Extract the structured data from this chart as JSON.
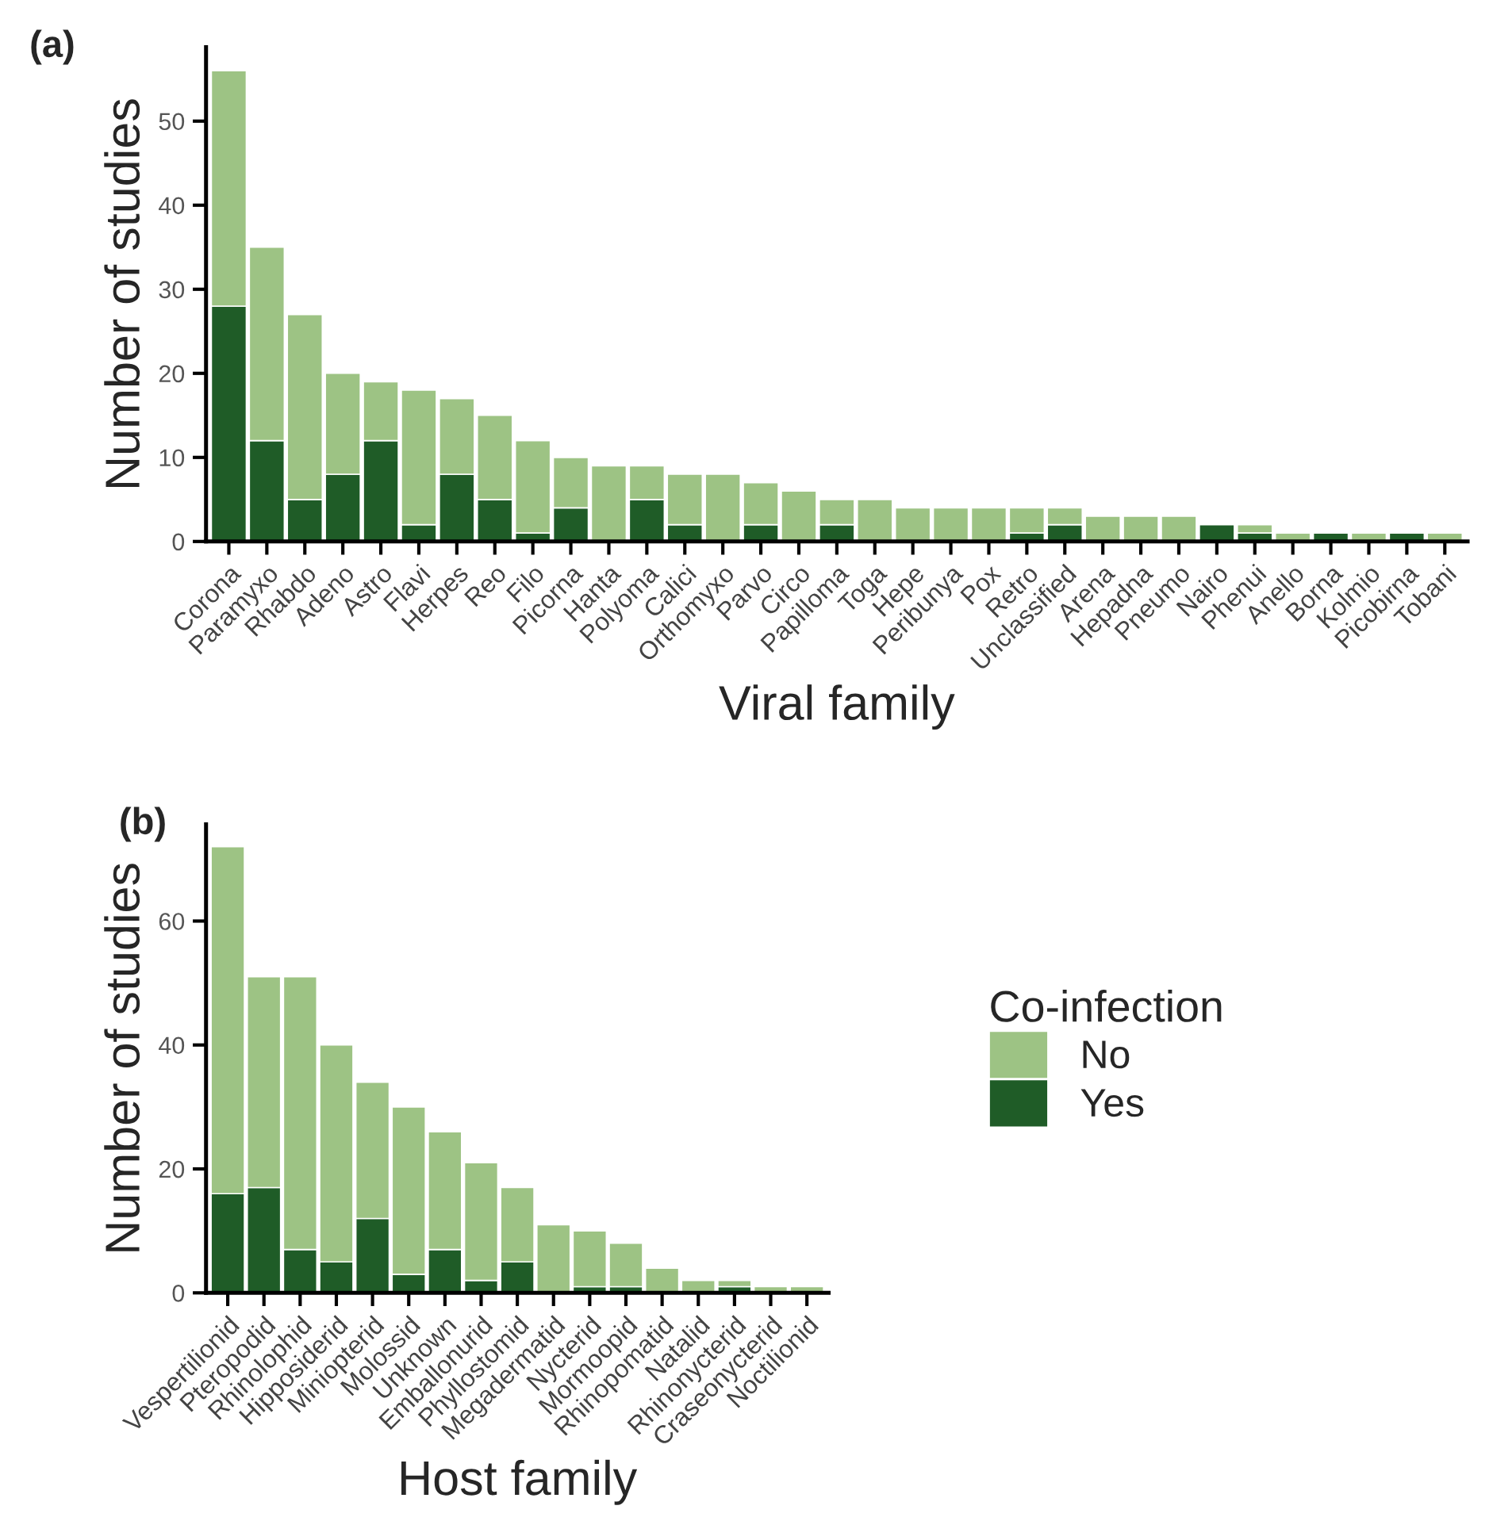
{
  "chart_data": [
    {
      "type": "bar",
      "title": "(a)",
      "xlabel": "Viral family",
      "ylabel": "Number of studies",
      "stacked": true,
      "grid": false,
      "categories": [
        "Corona",
        "Paramyxo",
        "Rhabdo",
        "Adeno",
        "Astro",
        "Flavi",
        "Herpes",
        "Reo",
        "Filo",
        "Picorna",
        "Hanta",
        "Polyoma",
        "Calici",
        "Orthomyxo",
        "Parvo",
        "Circo",
        "Papilloma",
        "Toga",
        "Hepe",
        "Peribunya",
        "Pox",
        "Retro",
        "Unclassified",
        "Arena",
        "Hepadna",
        "Pneumo",
        "Nairo",
        "Phenui",
        "Anello",
        "Borna",
        "Kolmio",
        "Picobirna",
        "Tobani"
      ],
      "series": [
        {
          "color": "#1f5c27",
          "values": [
            28,
            12,
            5,
            8,
            12,
            2,
            8,
            5,
            1,
            4,
            0,
            5,
            2,
            0,
            2,
            0,
            2,
            0,
            0,
            0,
            0,
            1,
            2,
            0,
            0,
            0,
            2,
            1,
            0,
            1,
            0,
            1,
            0
          ]
        },
        {
          "color": "#9dc384",
          "values": [
            28,
            23,
            22,
            12,
            7,
            16,
            9,
            10,
            11,
            6,
            9,
            4,
            6,
            8,
            5,
            6,
            3,
            5,
            4,
            4,
            4,
            3,
            2,
            3,
            3,
            3,
            0,
            1,
            1,
            0,
            1,
            0,
            1
          ]
        }
      ],
      "ylim": [
        0,
        58.8
      ],
      "yticks": [
        0,
        10,
        20,
        30,
        40,
        50
      ]
    },
    {
      "type": "bar",
      "title": "(b)",
      "xlabel": "Host family",
      "ylabel": "Number of studies",
      "stacked": true,
      "grid": false,
      "legend": "right",
      "legend_title": "Co-infection",
      "categories": [
        "Vespertilionid",
        "Pteropodid",
        "Rhinolophid",
        "Hipposiderid",
        "Miniopterid",
        "Molossid",
        "Unknown",
        "Emballonurid",
        "Phyllostomid",
        "Megadermatid",
        "Nycterid",
        "Mormoopid",
        "Rhinopomatid",
        "Natalid",
        "Rhinonycterid",
        "Craseonycterid",
        "Noctilionid"
      ],
      "series": [
        {
          "name": "Yes",
          "color": "#1f5c27",
          "values": [
            16,
            17,
            7,
            5,
            12,
            3,
            7,
            2,
            5,
            0,
            1,
            1,
            0,
            0,
            1,
            0,
            0
          ]
        },
        {
          "name": "No",
          "color": "#9dc384",
          "values": [
            56,
            34,
            44,
            35,
            22,
            27,
            19,
            19,
            12,
            11,
            9,
            7,
            4,
            2,
            1,
            1,
            1
          ]
        }
      ],
      "ylim": [
        0,
        75.6
      ],
      "yticks": [
        0,
        20,
        40,
        60
      ]
    }
  ]
}
